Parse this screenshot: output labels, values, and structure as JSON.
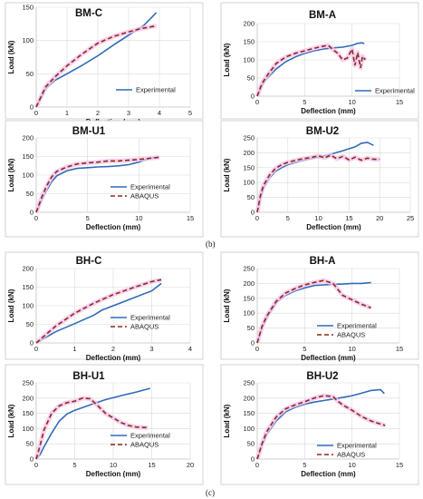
{
  "colors": {
    "experimental": "#2f6bb8",
    "abaqus": "#8b2a1a",
    "highlight": "#f4c6ef"
  },
  "figure_labels": {
    "b": "(b)",
    "c": "(c)"
  },
  "chart_data": [
    {
      "type": "line",
      "title": "BM-C",
      "xlabel": "Deflection (mm)",
      "ylabel": "Load (kN)",
      "xlim": [
        0,
        5
      ],
      "ylim": [
        0,
        150
      ],
      "xticks": [
        0,
        1,
        2,
        3,
        4,
        5
      ],
      "yticks": [
        0,
        50,
        100,
        150
      ],
      "legend": [
        "Experimental"
      ],
      "series": [
        {
          "name": "Experimental",
          "style": "solid",
          "x": [
            0,
            0.3,
            0.6,
            1,
            1.5,
            2,
            2.5,
            3,
            3.5,
            3.9
          ],
          "y": [
            0,
            27,
            40,
            50,
            63,
            77,
            93,
            108,
            123,
            142
          ]
        },
        {
          "style": "dashed",
          "x": [
            0,
            0.3,
            0.6,
            1,
            1.5,
            2,
            2.5,
            3,
            3.4,
            3.9
          ],
          "y": [
            0,
            30,
            45,
            62,
            80,
            96,
            106,
            113,
            118,
            122
          ]
        }
      ]
    },
    {
      "type": "line",
      "title": "BM-A",
      "xlabel": "Deflection (mm)",
      "ylabel": "Load (kN)",
      "xlim": [
        0,
        15
      ],
      "ylim": [
        0,
        200
      ],
      "xticks": [
        0,
        5,
        10,
        15
      ],
      "yticks": [
        0,
        50,
        100,
        150,
        200
      ],
      "legend": [
        "Experimental"
      ],
      "series": [
        {
          "name": "Experimental",
          "style": "solid",
          "x": [
            0,
            0.5,
            1,
            2,
            3,
            4,
            5,
            6,
            7,
            8,
            9,
            10,
            10.5,
            11,
            11.3
          ],
          "y": [
            0,
            30,
            48,
            75,
            95,
            108,
            118,
            125,
            130,
            133,
            135,
            140,
            145,
            147,
            145
          ]
        },
        {
          "style": "dashed",
          "x": [
            0,
            0.5,
            1,
            2,
            3,
            4,
            5,
            6,
            7,
            7.5,
            8,
            8.5,
            9,
            9.5,
            10,
            10.3,
            10.6,
            10.9,
            11.1,
            11.4
          ],
          "y": [
            0,
            35,
            55,
            90,
            108,
            118,
            125,
            132,
            138,
            140,
            128,
            118,
            100,
            105,
            130,
            85,
            120,
            78,
            110,
            100
          ]
        }
      ]
    },
    {
      "type": "line",
      "title": "BM-U1",
      "xlabel": "Deflection (mm)",
      "ylabel": "Load (kN)",
      "xlim": [
        0,
        15
      ],
      "ylim": [
        0,
        200
      ],
      "xticks": [
        0,
        5,
        10,
        15
      ],
      "yticks": [
        0,
        50,
        100,
        150,
        200
      ],
      "legend": [
        "Experimental",
        "ABAQUS"
      ],
      "series": [
        {
          "name": "Experimental",
          "style": "solid",
          "x": [
            0,
            0.5,
            1,
            1.5,
            2,
            3,
            4,
            5,
            6,
            7,
            8,
            9,
            10,
            11,
            12
          ],
          "y": [
            0,
            30,
            58,
            82,
            98,
            112,
            118,
            120,
            122,
            123,
            125,
            128,
            135,
            145,
            148
          ]
        },
        {
          "name": "ABAQUS",
          "style": "dashed",
          "x": [
            0,
            0.5,
            1,
            1.5,
            2,
            3,
            4,
            5,
            6,
            7,
            8,
            9,
            10,
            11,
            12
          ],
          "y": [
            0,
            38,
            70,
            95,
            110,
            122,
            130,
            133,
            135,
            138,
            138,
            140,
            142,
            145,
            148
          ]
        }
      ]
    },
    {
      "type": "line",
      "title": "BM-U2",
      "xlabel": "Deflection (mm)",
      "ylabel": "Load (kN)",
      "xlim": [
        0,
        25
      ],
      "ylim": [
        0,
        250
      ],
      "xticks": [
        0,
        5,
        10,
        15,
        20,
        25
      ],
      "yticks": [
        0,
        50,
        100,
        150,
        200,
        250
      ],
      "legend": [
        "Experimental"
      ],
      "series": [
        {
          "name": "Experimental",
          "style": "solid",
          "x": [
            0,
            0.5,
            1,
            2,
            3,
            4,
            5,
            7,
            10,
            12,
            14,
            16,
            17,
            18,
            19
          ],
          "y": [
            0,
            45,
            80,
            115,
            138,
            150,
            160,
            172,
            185,
            195,
            207,
            220,
            232,
            235,
            225
          ]
        },
        {
          "style": "dashed",
          "x": [
            0,
            0.5,
            1,
            2,
            3,
            4,
            5,
            7,
            9,
            10,
            11,
            12,
            13,
            14,
            15,
            16,
            17,
            18,
            19,
            20
          ],
          "y": [
            0,
            55,
            90,
            125,
            148,
            160,
            168,
            178,
            185,
            190,
            183,
            192,
            180,
            188,
            176,
            185,
            175,
            182,
            178,
            178
          ]
        }
      ]
    },
    {
      "type": "line",
      "title": "BH-C",
      "xlabel": "Deflection (mm)",
      "ylabel": "Load (kN)",
      "xlim": [
        0,
        4
      ],
      "ylim": [
        0,
        200
      ],
      "xticks": [
        0,
        1,
        2,
        3,
        4
      ],
      "yticks": [
        0,
        50,
        100,
        150,
        200
      ],
      "legend": [
        "Experimental",
        "ABAQUS"
      ],
      "series": [
        {
          "name": "Experimental",
          "style": "solid",
          "x": [
            0,
            0.5,
            1,
            1.5,
            1.7,
            2,
            2.5,
            3,
            3.25
          ],
          "y": [
            0,
            30,
            52,
            75,
            88,
            100,
            120,
            140,
            160
          ]
        },
        {
          "name": "ABAQUS",
          "style": "dashed",
          "x": [
            0,
            0.5,
            1,
            1.5,
            2,
            2.5,
            3,
            3.25
          ],
          "y": [
            0,
            45,
            80,
            107,
            130,
            148,
            165,
            170
          ]
        }
      ]
    },
    {
      "type": "line",
      "title": "BH-A",
      "xlabel": "Deflection (mm)",
      "ylabel": "Load (kN)",
      "xlim": [
        0,
        15
      ],
      "ylim": [
        0,
        250
      ],
      "xticks": [
        0,
        5,
        10,
        15
      ],
      "yticks": [
        0,
        50,
        100,
        150,
        200,
        250
      ],
      "legend": [
        "Experimental",
        "ABAQUS"
      ],
      "series": [
        {
          "name": "Experimental",
          "style": "solid",
          "x": [
            0,
            0.5,
            1,
            2,
            3,
            4,
            5,
            6,
            7,
            8,
            9,
            10,
            11,
            12
          ],
          "y": [
            0,
            50,
            85,
            135,
            160,
            175,
            185,
            193,
            195,
            197,
            198,
            200,
            200,
            203
          ]
        },
        {
          "name": "ABAQUS",
          "style": "dashed",
          "x": [
            0,
            0.5,
            1,
            2,
            3,
            4,
            5,
            6,
            7,
            7.5,
            8,
            8.5,
            9,
            10,
            11,
            12
          ],
          "y": [
            0,
            55,
            90,
            140,
            168,
            183,
            195,
            203,
            210,
            205,
            200,
            180,
            160,
            145,
            130,
            118
          ]
        }
      ]
    },
    {
      "type": "line",
      "title": "BH-U1",
      "xlabel": "Deflection (mm)",
      "ylabel": "Load (kN)",
      "xlim": [
        0,
        20
      ],
      "ylim": [
        0,
        250
      ],
      "xticks": [
        0,
        5,
        10,
        15,
        20
      ],
      "yticks": [
        0,
        50,
        100,
        150,
        200,
        250
      ],
      "legend": [
        "Experimental",
        "ABAQUS"
      ],
      "series": [
        {
          "name": "Experimental",
          "style": "solid",
          "x": [
            0,
            0.5,
            1,
            2,
            3,
            4,
            5,
            7,
            9,
            11,
            13,
            14.8
          ],
          "y": [
            0,
            15,
            40,
            85,
            125,
            148,
            160,
            178,
            195,
            208,
            220,
            232
          ]
        },
        {
          "name": "ABAQUS",
          "style": "dashed",
          "x": [
            0,
            0.5,
            1,
            2,
            3,
            4,
            5,
            6,
            7,
            8,
            9,
            10,
            11,
            12,
            13,
            14.5
          ],
          "y": [
            0,
            45,
            95,
            150,
            175,
            185,
            190,
            200,
            198,
            175,
            150,
            135,
            120,
            110,
            105,
            103
          ]
        }
      ]
    },
    {
      "type": "line",
      "title": "BH-U2",
      "xlabel": "Deflection (mm)",
      "ylabel": "Load (kN)",
      "xlim": [
        0,
        15
      ],
      "ylim": [
        0,
        250
      ],
      "xticks": [
        0,
        5,
        10,
        15
      ],
      "yticks": [
        0,
        50,
        100,
        150,
        200,
        250
      ],
      "legend": [
        "Experimental",
        "ABAQUS"
      ],
      "series": [
        {
          "name": "Experimental",
          "style": "solid",
          "x": [
            0,
            0.5,
            1,
            2,
            3,
            4,
            5,
            6,
            7,
            8,
            9,
            10,
            11,
            12,
            13,
            13.4
          ],
          "y": [
            0,
            45,
            80,
            125,
            155,
            170,
            180,
            187,
            192,
            197,
            202,
            208,
            216,
            225,
            228,
            215
          ]
        },
        {
          "name": "ABAQUS",
          "style": "dashed",
          "x": [
            0,
            0.5,
            1,
            2,
            3,
            4,
            5,
            6,
            7,
            8,
            8.5,
            9,
            10,
            11,
            12,
            13,
            13.5
          ],
          "y": [
            0,
            50,
            90,
            138,
            165,
            178,
            188,
            200,
            208,
            205,
            190,
            178,
            160,
            140,
            125,
            115,
            110
          ]
        }
      ]
    }
  ]
}
